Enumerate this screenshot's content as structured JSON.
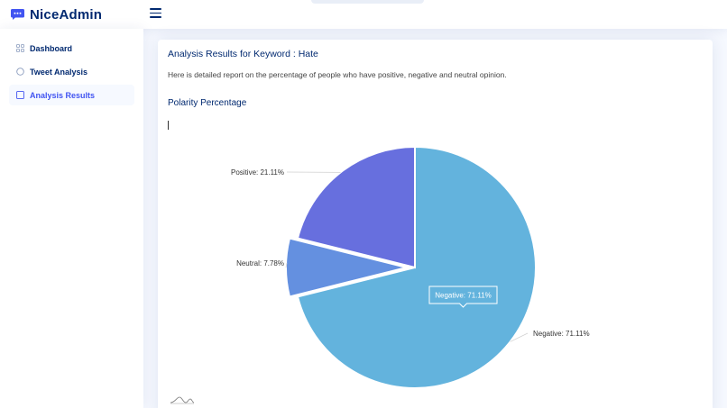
{
  "app": {
    "name": "NiceAdmin",
    "logo_icon": "chat-bubble-icon"
  },
  "header": {
    "toggle_icon": "hamburger-menu-icon"
  },
  "sidebar": {
    "items": [
      {
        "label": "Dashboard",
        "icon": "grid-icon",
        "active": false
      },
      {
        "label": "Tweet Analysis",
        "icon": "circle-icon",
        "active": false
      },
      {
        "label": "Analysis Results",
        "icon": "square-icon",
        "active": true
      }
    ]
  },
  "main": {
    "title": "Analysis Results for Keyword : Hate",
    "description": "Here is detailed report on the percentage of people who have positive, negative and neutral opinion.",
    "section_title": "Polarity Percentage"
  },
  "chart_data": {
    "type": "pie",
    "categories": [
      "Negative",
      "Neutral",
      "Positive"
    ],
    "values": [
      71.11,
      7.78,
      21.11
    ],
    "labels": [
      "Negative: 71.11%",
      "Neutral: 7.78%",
      "Positive: 21.11%"
    ],
    "tooltip": "Negative: 71.11%",
    "exploded": "Neutral",
    "colors": {
      "Negative": "#63b3dd",
      "Neutral": "#6490e0",
      "Positive": "#676fde"
    }
  },
  "colors": {
    "brand": "#012970",
    "accent": "#4154f1",
    "background": "#f6f9ff"
  }
}
